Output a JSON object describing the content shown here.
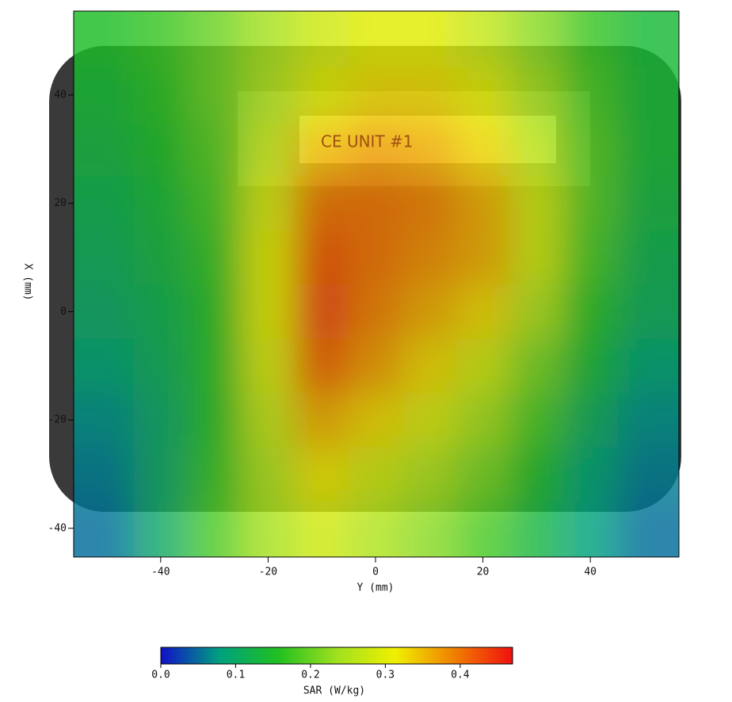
{
  "chart_data": {
    "type": "heatmap",
    "x_label": "Y (mm)",
    "y_label": "X (mm)",
    "x": [
      -50,
      -40,
      -30,
      -20,
      -10,
      0,
      10,
      20,
      30,
      40,
      50
    ],
    "y": [
      50,
      40,
      30,
      20,
      10,
      0,
      -10,
      -20,
      -30,
      -40
    ],
    "values": [
      [
        0.15,
        0.17,
        0.2,
        0.24,
        0.28,
        0.3,
        0.3,
        0.27,
        0.22,
        0.17,
        0.14
      ],
      [
        0.14,
        0.16,
        0.2,
        0.25,
        0.3,
        0.33,
        0.33,
        0.3,
        0.24,
        0.18,
        0.14
      ],
      [
        0.13,
        0.15,
        0.19,
        0.27,
        0.35,
        0.37,
        0.36,
        0.33,
        0.26,
        0.19,
        0.14
      ],
      [
        0.12,
        0.14,
        0.18,
        0.29,
        0.4,
        0.4,
        0.39,
        0.36,
        0.28,
        0.19,
        0.13
      ],
      [
        0.11,
        0.13,
        0.17,
        0.3,
        0.42,
        0.4,
        0.38,
        0.36,
        0.28,
        0.18,
        0.12
      ],
      [
        0.1,
        0.12,
        0.16,
        0.3,
        0.43,
        0.39,
        0.36,
        0.33,
        0.25,
        0.16,
        0.11
      ],
      [
        0.09,
        0.11,
        0.16,
        0.29,
        0.41,
        0.37,
        0.33,
        0.28,
        0.21,
        0.14,
        0.09
      ],
      [
        0.07,
        0.1,
        0.16,
        0.27,
        0.36,
        0.33,
        0.29,
        0.24,
        0.18,
        0.11,
        0.07
      ],
      [
        0.06,
        0.1,
        0.17,
        0.25,
        0.32,
        0.28,
        0.25,
        0.21,
        0.15,
        0.09,
        0.06
      ],
      [
        0.05,
        0.1,
        0.18,
        0.24,
        0.28,
        0.25,
        0.22,
        0.18,
        0.13,
        0.08,
        0.05
      ]
    ],
    "xlim": [
      -56.2,
      56.5
    ],
    "ylim": [
      -45.3,
      55.5
    ],
    "xticks": [
      -40,
      -20,
      0,
      20,
      40
    ],
    "yticks": [
      -40,
      -20,
      0,
      20,
      40
    ],
    "colormap": [
      "#1010c8",
      "#00a080",
      "#20c020",
      "#a0e020",
      "#f0f000",
      "#f08000",
      "#f01010"
    ],
    "colorbar": {
      "label": "SAR (W/kg)",
      "lim": [
        0,
        0.47
      ],
      "ticks": [
        {
          "value": 0,
          "label": "0.0"
        },
        0.1,
        0.2,
        0.3,
        0.4
      ]
    }
  },
  "photo_label": "CE UNIT #1"
}
